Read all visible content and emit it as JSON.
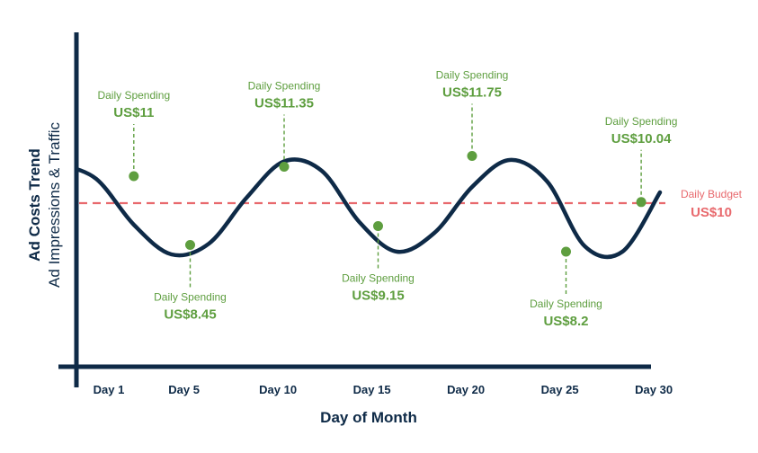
{
  "chart_data": {
    "type": "line",
    "xlabel": "Day of Month",
    "ylabel_main": "Ad Costs Trend",
    "ylabel_sub": "Ad Impressions & Traffic",
    "x_tick_labels": [
      "Day 1",
      "Day 5",
      "Day 10",
      "Day 15",
      "Day 20",
      "Day 25",
      "Day 30"
    ],
    "x_tick_days": [
      1,
      5,
      10,
      15,
      20,
      25,
      30
    ],
    "grid": false,
    "legend": "none",
    "trend_series": {
      "description_values": "approximate sinusoidal trend in spending units",
      "x": [
        -1,
        1,
        3,
        5,
        7,
        9,
        11,
        13,
        15,
        17,
        19,
        21,
        23,
        25,
        27,
        29,
        31
      ],
      "y": [
        11.45,
        10.9,
        9.2,
        8.1,
        8.5,
        10.2,
        11.55,
        11.2,
        9.3,
        8.2,
        8.9,
        10.6,
        11.6,
        10.8,
        8.4,
        8.2,
        10.4
      ]
    },
    "points": [
      {
        "day": 3,
        "value": 11,
        "label": "Daily Spending",
        "value_text": "US$11",
        "label_position": "above"
      },
      {
        "day": 6,
        "value": 8.45,
        "label": "Daily Spending",
        "value_text": "US$8.45",
        "label_position": "below"
      },
      {
        "day": 11,
        "value": 11.35,
        "label": "Daily Spending",
        "value_text": "US$11.35",
        "label_position": "above"
      },
      {
        "day": 16,
        "value": 9.15,
        "label": "Daily Spending",
        "value_text": "US$9.15",
        "label_position": "below"
      },
      {
        "day": 21,
        "value": 11.75,
        "label": "Daily Spending",
        "value_text": "US$11.75",
        "label_position": "above"
      },
      {
        "day": 26,
        "value": 8.2,
        "label": "Daily Spending",
        "value_text": "US$8.2",
        "label_position": "below"
      },
      {
        "day": 30,
        "value": 10.04,
        "label": "Daily Spending",
        "value_text": "US$10.04",
        "label_position": "above"
      }
    ],
    "budget": {
      "value": 10,
      "label": "Daily Budget",
      "value_text": "US$10"
    },
    "colors": {
      "axis": "#0e2a47",
      "trend": "#0e2a47",
      "points": "#5e9e3f",
      "budget": "#e8696d"
    }
  }
}
